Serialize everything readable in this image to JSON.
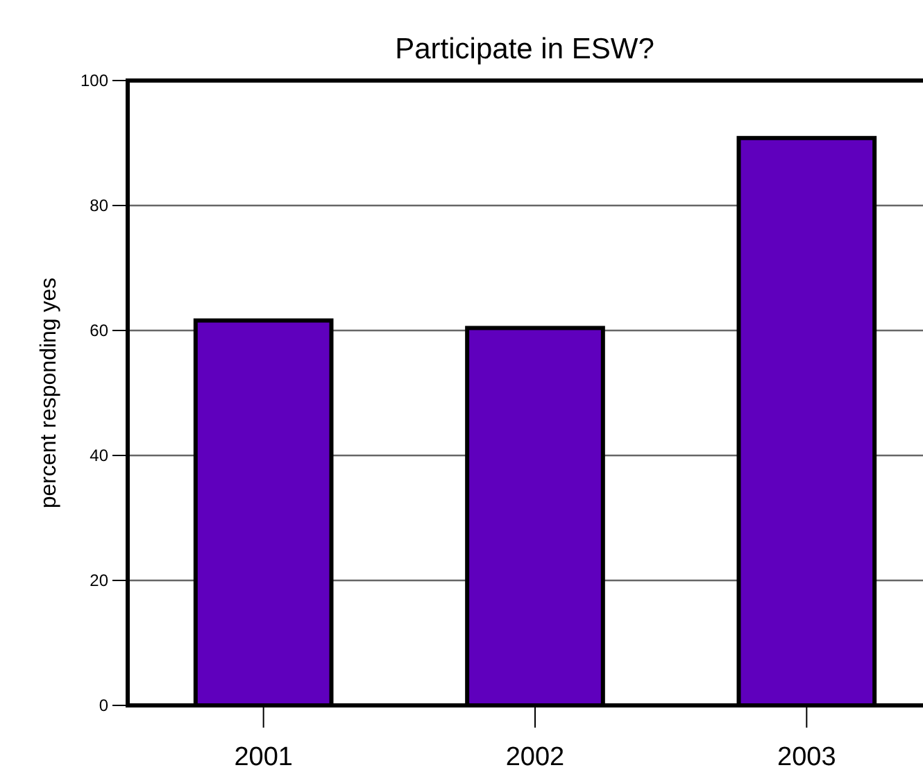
{
  "chart_data": {
    "type": "bar",
    "title": "Participate in ESW?",
    "ylabel": "percent responding yes",
    "categories": [
      "2001",
      "2002",
      "2003"
    ],
    "values": [
      61.6,
      60.4,
      90.8
    ],
    "color": "#5f00bd",
    "ylim": [
      0,
      100
    ],
    "yticks": [
      0,
      20,
      40,
      60,
      80,
      100
    ],
    "grid": "y"
  }
}
